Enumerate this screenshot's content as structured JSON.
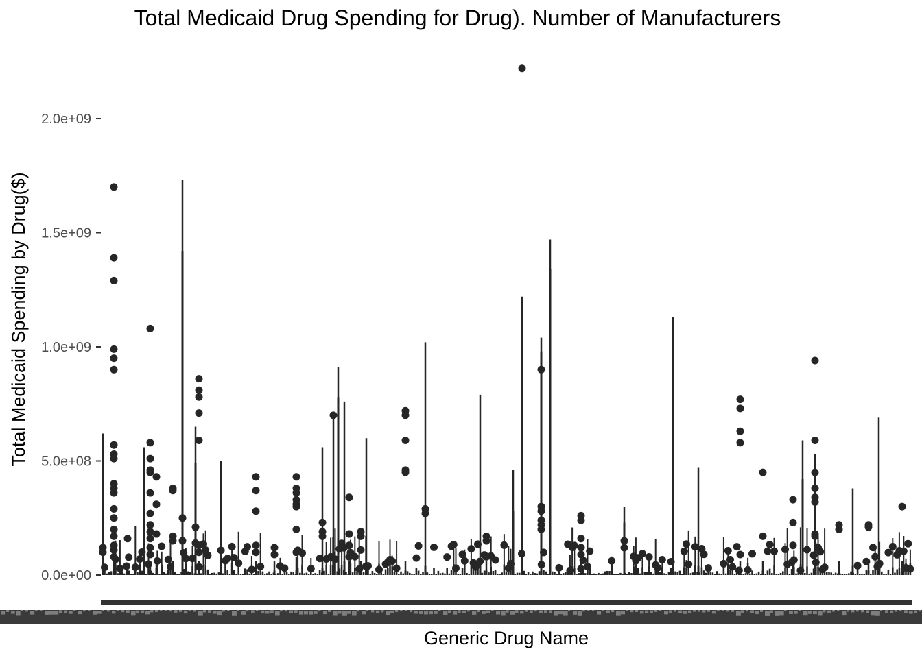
{
  "chart_data": {
    "type": "box",
    "title": "Total Medicaid Drug Spending for Drug). Number of Manufacturers",
    "xlabel": "Generic Drug Name",
    "ylabel": "Total Medicaid Spending by Drug($)",
    "yticks": [
      {
        "value": 0,
        "label": "0.0e+00"
      },
      {
        "value": 500000000,
        "label": "5.0e+08"
      },
      {
        "value": 1000000000,
        "label": "1.0e+09"
      },
      {
        "value": 1500000000,
        "label": "1.5e+09"
      },
      {
        "value": 2000000000,
        "label": "2.0e+09"
      }
    ],
    "ylim": [
      -30000000,
      2250000000
    ],
    "grid": false,
    "legend": "none",
    "color": "#262626",
    "boxes": [
      {
        "name": "drug-a",
        "x": 150,
        "upper": 620000000,
        "q3": 100000000,
        "outliers": [
          120000000,
          100000000
        ]
      },
      {
        "name": "drug-b",
        "x": 166,
        "upper": 60000000,
        "q3": 20000000,
        "outliers": [
          1700000000,
          1390000000,
          1290000000,
          990000000,
          950000000,
          900000000,
          570000000,
          530000000,
          510000000,
          400000000,
          380000000,
          360000000,
          290000000,
          250000000,
          200000000,
          170000000,
          130000000,
          110000000,
          80000000
        ]
      },
      {
        "name": "drug-c",
        "x": 186,
        "upper": 40000000,
        "q3": 10000000,
        "outliers": [
          160000000
        ]
      },
      {
        "name": "drug-d",
        "x": 210,
        "upper": 560000000,
        "q3": 60000000,
        "outliers": []
      },
      {
        "name": "drug-e",
        "x": 219,
        "upper": 60000000,
        "q3": 20000000,
        "outliers": [
          1080000000,
          580000000,
          510000000,
          460000000,
          450000000,
          360000000,
          270000000,
          220000000,
          190000000,
          160000000,
          120000000,
          90000000
        ]
      },
      {
        "name": "drug-f",
        "x": 228,
        "upper": 80000000,
        "q3": 30000000,
        "outliers": [
          430000000,
          310000000,
          180000000
        ]
      },
      {
        "name": "drug-g",
        "x": 252,
        "upper": 60000000,
        "q3": 20000000,
        "outliers": [
          380000000,
          370000000,
          170000000,
          150000000
        ]
      },
      {
        "name": "drug-h",
        "x": 266,
        "upper": 1730000000,
        "q3": 1420000000,
        "outliers": [
          250000000,
          150000000
        ]
      },
      {
        "name": "drug-i",
        "x": 285,
        "upper": 650000000,
        "q3": 490000000,
        "outliers": [
          210000000,
          140000000
        ]
      },
      {
        "name": "drug-j",
        "x": 290,
        "upper": 60000000,
        "q3": 20000000,
        "outliers": [
          860000000,
          810000000,
          780000000,
          710000000,
          590000000,
          130000000,
          100000000
        ]
      },
      {
        "name": "drug-k",
        "x": 322,
        "upper": 500000000,
        "q3": 40000000,
        "outliers": []
      },
      {
        "name": "drug-l",
        "x": 373,
        "upper": 60000000,
        "q3": 20000000,
        "outliers": [
          430000000,
          370000000,
          280000000,
          130000000,
          100000000
        ]
      },
      {
        "name": "drug-m",
        "x": 400,
        "upper": 60000000,
        "q3": 20000000,
        "outliers": [
          120000000,
          90000000
        ]
      },
      {
        "name": "drug-n",
        "x": 432,
        "upper": 80000000,
        "q3": 20000000,
        "outliers": [
          430000000,
          380000000,
          360000000,
          330000000,
          310000000,
          300000000,
          200000000,
          100000000
        ]
      },
      {
        "name": "drug-o",
        "x": 470,
        "upper": 560000000,
        "q3": 30000000,
        "outliers": [
          230000000,
          190000000,
          170000000
        ]
      },
      {
        "name": "drug-p",
        "x": 486,
        "upper": 700000000,
        "q3": 100000000,
        "outliers": [
          700000000
        ]
      },
      {
        "name": "drug-q",
        "x": 493,
        "upper": 910000000,
        "q3": 780000000,
        "outliers": []
      },
      {
        "name": "drug-r",
        "x": 502,
        "upper": 760000000,
        "q3": 60000000,
        "outliers": []
      },
      {
        "name": "drug-s",
        "x": 509,
        "upper": 60000000,
        "q3": 20000000,
        "outliers": [
          340000000,
          180000000,
          130000000,
          80000000
        ]
      },
      {
        "name": "drug-t",
        "x": 526,
        "upper": 60000000,
        "q3": 20000000,
        "outliers": [
          190000000,
          170000000,
          110000000
        ]
      },
      {
        "name": "drug-u",
        "x": 534,
        "upper": 600000000,
        "q3": 50000000,
        "outliers": []
      },
      {
        "name": "drug-v",
        "x": 591,
        "upper": 60000000,
        "q3": 20000000,
        "outliers": [
          720000000,
          700000000,
          590000000,
          460000000,
          450000000
        ]
      },
      {
        "name": "drug-w",
        "x": 620,
        "upper": 1020000000,
        "q3": 40000000,
        "outliers": [
          290000000,
          270000000
        ]
      },
      {
        "name": "drug-x",
        "x": 700,
        "upper": 790000000,
        "q3": 60000000,
        "outliers": []
      },
      {
        "name": "drug-y",
        "x": 709,
        "upper": 60000000,
        "q3": 20000000,
        "outliers": [
          170000000,
          150000000,
          80000000
        ]
      },
      {
        "name": "drug-z",
        "x": 748,
        "upper": 460000000,
        "q3": 280000000,
        "outliers": []
      },
      {
        "name": "drug-aa",
        "x": 761,
        "upper": 1220000000,
        "q3": 360000000,
        "outliers": [
          2220000000
        ]
      },
      {
        "name": "drug-ab",
        "x": 789,
        "upper": 1040000000,
        "q3": 980000000,
        "outliers": [
          900000000,
          300000000,
          280000000,
          240000000,
          220000000,
          200000000
        ]
      },
      {
        "name": "drug-ac",
        "x": 802,
        "upper": 1470000000,
        "q3": 1340000000,
        "outliers": []
      },
      {
        "name": "drug-ad",
        "x": 847,
        "upper": 60000000,
        "q3": 20000000,
        "outliers": [
          260000000,
          240000000,
          160000000,
          120000000,
          90000000
        ]
      },
      {
        "name": "drug-ae",
        "x": 910,
        "upper": 300000000,
        "q3": 230000000,
        "outliers": [
          150000000,
          120000000
        ]
      },
      {
        "name": "drug-af",
        "x": 981,
        "upper": 1130000000,
        "q3": 850000000,
        "outliers": []
      },
      {
        "name": "drug-ag",
        "x": 1018,
        "upper": 470000000,
        "q3": 40000000,
        "outliers": []
      },
      {
        "name": "drug-ah",
        "x": 1079,
        "upper": 60000000,
        "q3": 20000000,
        "outliers": [
          770000000,
          730000000,
          630000000,
          580000000,
          90000000
        ]
      },
      {
        "name": "drug-ai",
        "x": 1112,
        "upper": 60000000,
        "q3": 20000000,
        "outliers": [
          450000000,
          170000000
        ]
      },
      {
        "name": "drug-aj",
        "x": 1156,
        "upper": 60000000,
        "q3": 20000000,
        "outliers": [
          330000000,
          230000000,
          130000000
        ]
      },
      {
        "name": "drug-ak",
        "x": 1170,
        "upper": 590000000,
        "q3": 420000000,
        "outliers": []
      },
      {
        "name": "drug-al",
        "x": 1188,
        "upper": 530000000,
        "q3": 60000000,
        "outliers": [
          940000000,
          590000000,
          450000000,
          380000000,
          340000000,
          320000000,
          180000000,
          170000000
        ]
      },
      {
        "name": "drug-am",
        "x": 1223,
        "upper": 60000000,
        "q3": 20000000,
        "outliers": [
          220000000,
          200000000
        ]
      },
      {
        "name": "drug-an",
        "x": 1243,
        "upper": 380000000,
        "q3": 40000000,
        "outliers": []
      },
      {
        "name": "drug-ao",
        "x": 1266,
        "upper": 60000000,
        "q3": 20000000,
        "outliers": [
          220000000,
          210000000
        ]
      },
      {
        "name": "drug-ap",
        "x": 1281,
        "upper": 690000000,
        "q3": 60000000,
        "outliers": []
      },
      {
        "name": "drug-aq",
        "x": 1315,
        "upper": 60000000,
        "q3": 20000000,
        "outliers": [
          300000000
        ]
      }
    ]
  }
}
